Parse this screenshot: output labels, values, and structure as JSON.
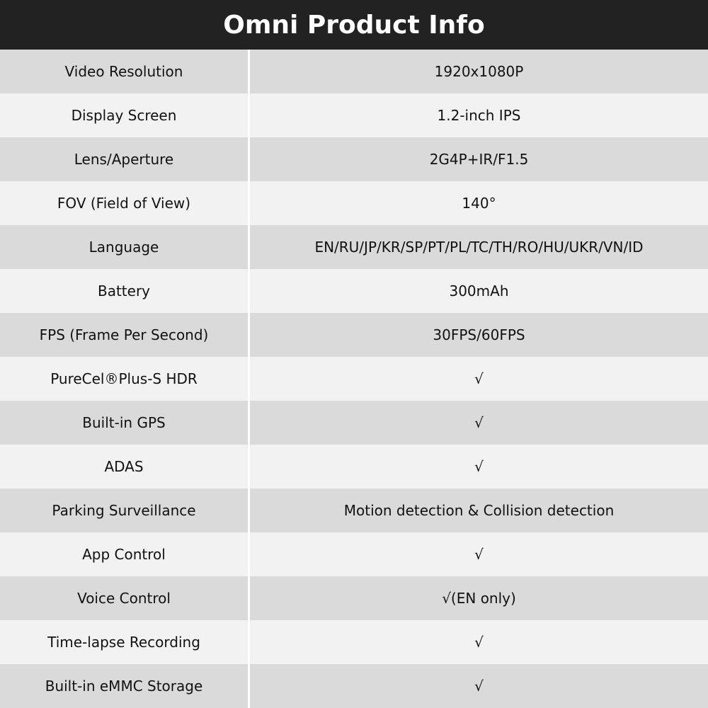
{
  "title": "Omni Product Info",
  "rows": [
    {
      "label": "Video Resolution",
      "value": "1920x1080P"
    },
    {
      "label": "Display Screen",
      "value": "1.2-inch IPS"
    },
    {
      "label": "Lens/Aperture",
      "value": "2G4P+IR/F1.5"
    },
    {
      "label": "FOV (Field of View)",
      "value": "140°"
    },
    {
      "label": "Language",
      "value": "EN/RU/JP/KR/SP/PT/PL/TC/TH/RO/HU/UKR/VN/ID"
    },
    {
      "label": "Battery",
      "value": "300mAh"
    },
    {
      "label": "FPS (Frame Per Second)",
      "value": "30FPS/60FPS"
    },
    {
      "label": "PureCel®Plus-S HDR",
      "value": "√"
    },
    {
      "label": "Built-in GPS",
      "value": "√"
    },
    {
      "label": "ADAS",
      "value": "√"
    },
    {
      "label": "Parking Surveillance",
      "value": "Motion detection & Collision detection"
    },
    {
      "label": "App Control",
      "value": "√"
    },
    {
      "label": "Voice Control",
      "value": "√(EN only)"
    },
    {
      "label": "Time-lapse Recording",
      "value": "√"
    },
    {
      "label": "Built-in eMMC Storage",
      "value": "√"
    }
  ]
}
